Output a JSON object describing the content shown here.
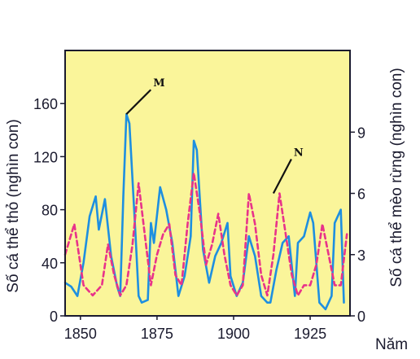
{
  "chart_data": {
    "type": "line",
    "title": "",
    "xlabel": "Năm",
    "ylabel_left": "Số cá thể thỏ (nghìn con)",
    "ylabel_right": "Số cá thể mèo rừng (nghìn con)",
    "xlim": [
      1845,
      1938
    ],
    "ylim_left": [
      0,
      200
    ],
    "ylim_right": [
      0,
      13
    ],
    "x_ticks": [
      "1850",
      "1875",
      "1900",
      "1925"
    ],
    "y_ticks_left": [
      "0",
      "40",
      "80",
      "120",
      "160"
    ],
    "y_ticks_right": [
      "0",
      "3",
      "6",
      "9"
    ],
    "grid": false,
    "colors": {
      "background": "#faf59a",
      "hare": "#1e8fe0",
      "lynx": "#e8338a",
      "frame": "#1a1a2e"
    },
    "series": [
      {
        "key": "hare",
        "axis": "left",
        "style": "solid",
        "x": [
          1845,
          1847,
          1849,
          1851,
          1853,
          1855,
          1856,
          1858,
          1860,
          1862,
          1863,
          1864,
          1865,
          1866,
          1868,
          1869,
          1870,
          1872,
          1873,
          1874,
          1876,
          1878,
          1880,
          1882,
          1884,
          1886,
          1887,
          1888,
          1890,
          1892,
          1894,
          1896,
          1898,
          1899,
          1901,
          1903,
          1905,
          1907,
          1909,
          1911,
          1912,
          1914,
          1916,
          1918,
          1920,
          1921,
          1923,
          1925,
          1926,
          1928,
          1930,
          1932,
          1933,
          1935,
          1936
        ],
        "values": [
          25,
          22,
          15,
          40,
          75,
          90,
          65,
          88,
          45,
          22,
          15,
          90,
          152,
          145,
          60,
          15,
          10,
          12,
          70,
          55,
          97,
          80,
          55,
          15,
          30,
          60,
          132,
          125,
          50,
          25,
          45,
          55,
          70,
          30,
          15,
          25,
          60,
          45,
          15,
          10,
          10,
          35,
          55,
          60,
          15,
          55,
          60,
          78,
          70,
          10,
          5,
          15,
          70,
          80,
          10
        ]
      },
      {
        "key": "lynx",
        "axis": "right",
        "style": "dashed",
        "x": [
          1845,
          1848,
          1851,
          1854,
          1857,
          1859,
          1861,
          1863,
          1865,
          1867,
          1869,
          1871,
          1873,
          1875,
          1877,
          1879,
          1881,
          1883,
          1885,
          1887,
          1889,
          1891,
          1893,
          1895,
          1897,
          1899,
          1901,
          1903,
          1905,
          1907,
          1909,
          1911,
          1913,
          1915,
          1917,
          1919,
          1921,
          1923,
          1925,
          1927,
          1929,
          1931,
          1933,
          1935,
          1937
        ],
        "values": [
          3,
          4.5,
          1.5,
          1,
          1.5,
          3.5,
          2,
          1,
          1.5,
          3.5,
          6.5,
          4,
          1.5,
          3,
          4,
          4.5,
          2,
          1.5,
          4.5,
          7,
          5,
          2.5,
          3.5,
          5,
          3,
          1.5,
          1,
          1.5,
          6,
          4.5,
          2,
          1,
          3,
          6,
          4,
          2,
          1,
          1.5,
          1.5,
          2.5,
          4.5,
          3,
          1.5,
          1.5,
          4
        ]
      }
    ],
    "annotations": [
      {
        "label": "M",
        "x": 1865,
        "y": 152,
        "axis": "left"
      },
      {
        "label": "N",
        "x": 1913,
        "y": 6,
        "axis": "right"
      }
    ]
  }
}
